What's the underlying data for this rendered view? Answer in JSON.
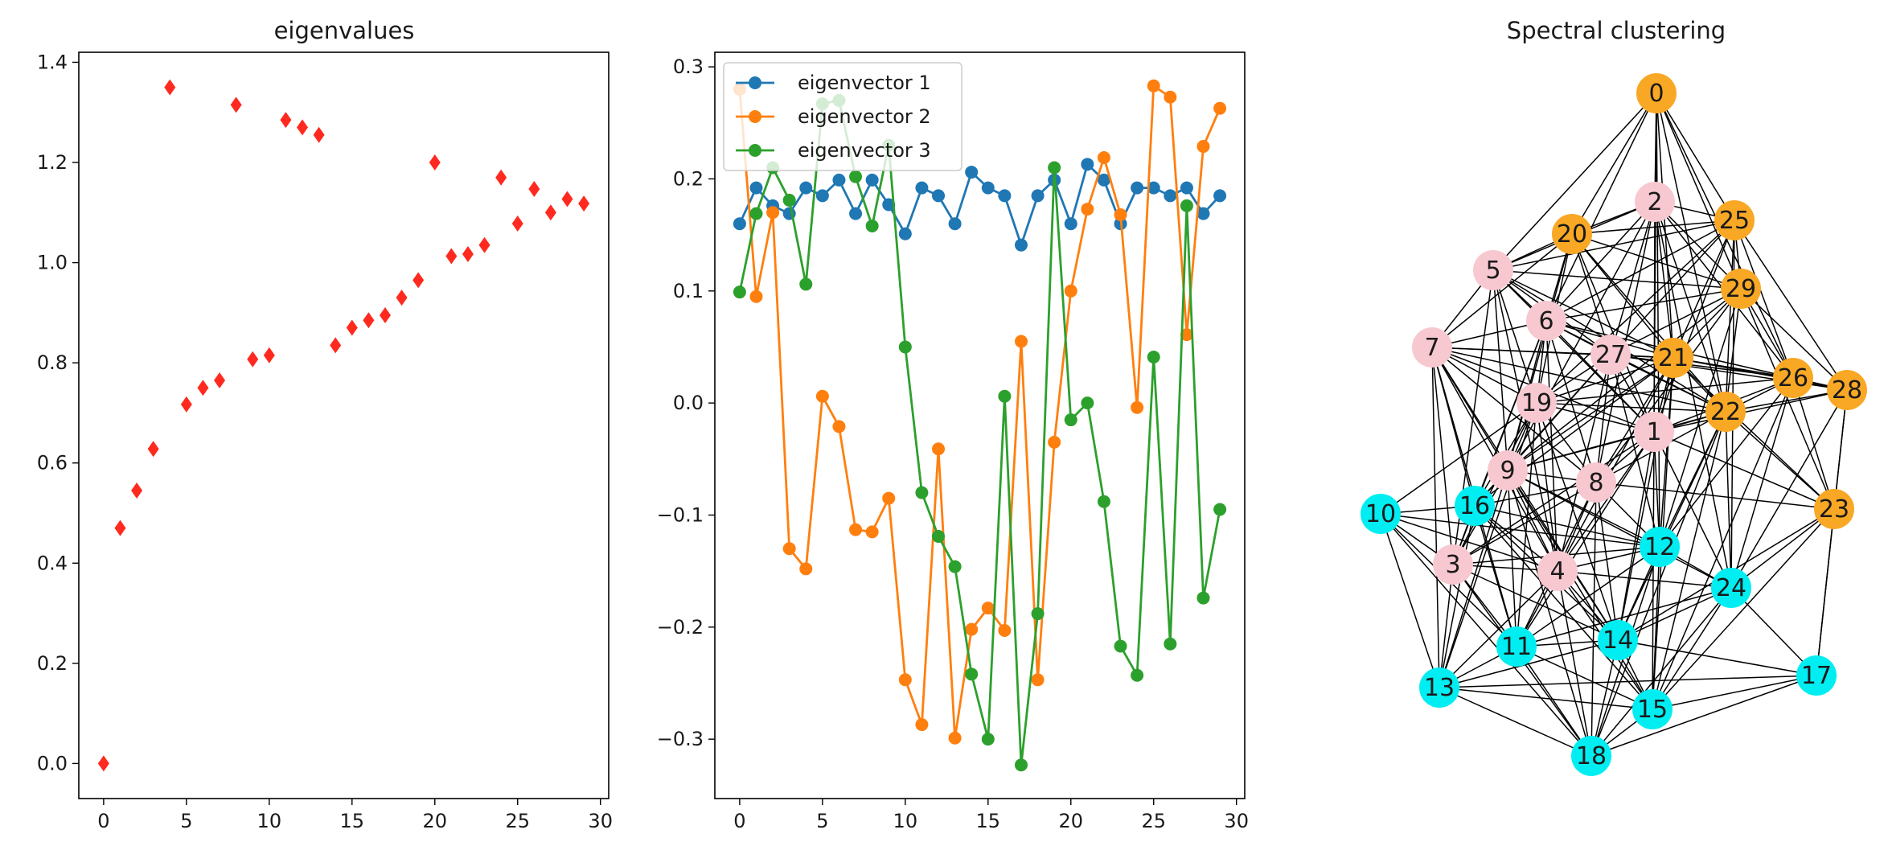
{
  "chart_data": [
    {
      "type": "scatter",
      "title": "eigenvalues",
      "xlabel": "",
      "ylabel": "",
      "marker": "diamond",
      "color": "#ff2a1f",
      "xlim": [
        -1.5,
        30.5
      ],
      "ylim": [
        -0.07,
        1.42
      ],
      "xticks": [
        0,
        5,
        10,
        15,
        20,
        25,
        30
      ],
      "yticks": [
        0.0,
        0.2,
        0.4,
        0.6,
        0.8,
        1.0,
        1.2,
        1.4
      ],
      "xtick_labels": [
        "0",
        "5",
        "10",
        "15",
        "20",
        "25",
        "30"
      ],
      "ytick_labels": [
        "0.0",
        "0.2",
        "0.4",
        "0.6",
        "0.8",
        "1.0",
        "1.2",
        "1.4"
      ],
      "x": [
        0,
        1,
        2,
        3,
        4,
        5,
        6,
        7,
        8,
        9,
        10,
        11,
        12,
        13,
        14,
        15,
        16,
        17,
        18,
        19,
        20,
        21,
        22,
        23,
        24,
        25,
        26,
        27,
        28,
        29
      ],
      "y": [
        0.0,
        0.47,
        0.545,
        0.628,
        1.35,
        0.717,
        0.75,
        0.765,
        1.315,
        0.807,
        0.815,
        1.285,
        1.27,
        1.255,
        0.835,
        0.87,
        0.885,
        0.895,
        0.93,
        0.965,
        1.2,
        1.013,
        1.017,
        1.035,
        1.17,
        1.078,
        1.147,
        1.1,
        1.127,
        1.118
      ]
    },
    {
      "type": "line",
      "title": "",
      "xlabel": "",
      "ylabel": "",
      "xlim": [
        -1.5,
        30.5
      ],
      "ylim": [
        -0.353,
        0.313
      ],
      "xticks": [
        0,
        5,
        10,
        15,
        20,
        25,
        30
      ],
      "yticks": [
        -0.3,
        -0.2,
        -0.1,
        0.0,
        0.1,
        0.2,
        0.3
      ],
      "xtick_labels": [
        "0",
        "5",
        "10",
        "15",
        "20",
        "25",
        "30"
      ],
      "ytick_labels": [
        "−0.3",
        "−0.2",
        "−0.1",
        "0.0",
        "0.1",
        "0.2",
        "0.3"
      ],
      "legend_position": "top-left",
      "x": [
        0,
        1,
        2,
        3,
        4,
        5,
        6,
        7,
        8,
        9,
        10,
        11,
        12,
        13,
        14,
        15,
        16,
        17,
        18,
        19,
        20,
        21,
        22,
        23,
        24,
        25,
        26,
        27,
        28,
        29
      ],
      "series": [
        {
          "name": "eigenvector 1",
          "color": "#1f77b4",
          "values": [
            0.16,
            0.192,
            0.176,
            0.169,
            0.192,
            0.185,
            0.199,
            0.169,
            0.199,
            0.177,
            0.151,
            0.192,
            0.185,
            0.16,
            0.206,
            0.192,
            0.185,
            0.141,
            0.185,
            0.199,
            0.16,
            0.213,
            0.199,
            0.16,
            0.192,
            0.192,
            0.185,
            0.192,
            0.169,
            0.185
          ]
        },
        {
          "name": "eigenvector 2",
          "color": "#ff7f0e",
          "values": [
            0.28,
            0.095,
            0.17,
            -0.13,
            -0.148,
            0.006,
            -0.021,
            -0.113,
            -0.115,
            -0.085,
            -0.247,
            -0.287,
            -0.041,
            -0.299,
            -0.202,
            -0.183,
            -0.203,
            0.055,
            -0.247,
            -0.035,
            0.1,
            0.173,
            0.219,
            0.168,
            -0.004,
            0.283,
            0.273,
            0.061,
            0.229,
            0.263
          ]
        },
        {
          "name": "eigenvector 3",
          "color": "#2ca02c",
          "values": [
            0.099,
            0.169,
            0.21,
            0.181,
            0.106,
            0.267,
            0.27,
            0.202,
            0.158,
            0.23,
            0.05,
            -0.08,
            -0.119,
            -0.146,
            -0.242,
            -0.3,
            0.006,
            -0.323,
            -0.188,
            0.21,
            -0.015,
            0.0,
            -0.088,
            -0.217,
            -0.243,
            0.041,
            -0.215,
            0.176,
            -0.174,
            -0.095
          ]
        }
      ]
    },
    {
      "type": "graph",
      "title": "Spectral clustering",
      "cluster_colors": {
        "A": "#f9a825",
        "B": "#f8c8d0",
        "C": "#00eef2"
      },
      "nodes": [
        {
          "id": "0",
          "cluster": "A"
        },
        {
          "id": "1",
          "cluster": "B"
        },
        {
          "id": "2",
          "cluster": "B"
        },
        {
          "id": "3",
          "cluster": "B"
        },
        {
          "id": "4",
          "cluster": "B"
        },
        {
          "id": "5",
          "cluster": "B"
        },
        {
          "id": "6",
          "cluster": "B"
        },
        {
          "id": "7",
          "cluster": "B"
        },
        {
          "id": "8",
          "cluster": "B"
        },
        {
          "id": "9",
          "cluster": "B"
        },
        {
          "id": "10",
          "cluster": "C"
        },
        {
          "id": "11",
          "cluster": "C"
        },
        {
          "id": "12",
          "cluster": "C"
        },
        {
          "id": "13",
          "cluster": "C"
        },
        {
          "id": "14",
          "cluster": "C"
        },
        {
          "id": "15",
          "cluster": "C"
        },
        {
          "id": "16",
          "cluster": "C"
        },
        {
          "id": "17",
          "cluster": "C"
        },
        {
          "id": "18",
          "cluster": "C"
        },
        {
          "id": "19",
          "cluster": "B"
        },
        {
          "id": "20",
          "cluster": "A"
        },
        {
          "id": "21",
          "cluster": "A"
        },
        {
          "id": "22",
          "cluster": "A"
        },
        {
          "id": "23",
          "cluster": "A"
        },
        {
          "id": "24",
          "cluster": "C"
        },
        {
          "id": "25",
          "cluster": "A"
        },
        {
          "id": "26",
          "cluster": "A"
        },
        {
          "id": "27",
          "cluster": "B"
        },
        {
          "id": "28",
          "cluster": "A"
        },
        {
          "id": "29",
          "cluster": "A"
        }
      ],
      "edges": [
        [
          "0",
          "2"
        ],
        [
          "0",
          "25"
        ],
        [
          "0",
          "29"
        ],
        [
          "0",
          "21"
        ],
        [
          "0",
          "22"
        ],
        [
          "0",
          "26"
        ],
        [
          "0",
          "5"
        ],
        [
          "0",
          "20"
        ],
        [
          "0",
          "1"
        ],
        [
          "0",
          "12"
        ],
        [
          "0",
          "6"
        ],
        [
          "2",
          "20"
        ],
        [
          "2",
          "25"
        ],
        [
          "2",
          "29"
        ],
        [
          "2",
          "6"
        ],
        [
          "2",
          "5"
        ],
        [
          "2",
          "21"
        ],
        [
          "2",
          "22"
        ],
        [
          "2",
          "26"
        ],
        [
          "2",
          "27"
        ],
        [
          "2",
          "9"
        ],
        [
          "2",
          "1"
        ],
        [
          "2",
          "8"
        ],
        [
          "2",
          "24"
        ],
        [
          "25",
          "20"
        ],
        [
          "25",
          "29"
        ],
        [
          "25",
          "21"
        ],
        [
          "25",
          "26"
        ],
        [
          "25",
          "28"
        ],
        [
          "25",
          "22"
        ],
        [
          "25",
          "6"
        ],
        [
          "25",
          "27"
        ],
        [
          "25",
          "5"
        ],
        [
          "25",
          "1"
        ],
        [
          "25",
          "24"
        ],
        [
          "25",
          "19"
        ],
        [
          "20",
          "5"
        ],
        [
          "20",
          "29"
        ],
        [
          "20",
          "6"
        ],
        [
          "20",
          "21"
        ],
        [
          "20",
          "27"
        ],
        [
          "20",
          "19"
        ],
        [
          "20",
          "9"
        ],
        [
          "20",
          "22"
        ],
        [
          "20",
          "1"
        ],
        [
          "20",
          "7"
        ],
        [
          "29",
          "5"
        ],
        [
          "29",
          "21"
        ],
        [
          "29",
          "26"
        ],
        [
          "29",
          "22"
        ],
        [
          "29",
          "28"
        ],
        [
          "29",
          "6"
        ],
        [
          "29",
          "27"
        ],
        [
          "29",
          "9"
        ],
        [
          "29",
          "8"
        ],
        [
          "29",
          "12"
        ],
        [
          "29",
          "23"
        ],
        [
          "5",
          "6"
        ],
        [
          "5",
          "7"
        ],
        [
          "5",
          "27"
        ],
        [
          "5",
          "21"
        ],
        [
          "5",
          "19"
        ],
        [
          "5",
          "9"
        ],
        [
          "5",
          "1"
        ],
        [
          "5",
          "3"
        ],
        [
          "5",
          "4"
        ],
        [
          "5",
          "22"
        ],
        [
          "6",
          "7"
        ],
        [
          "6",
          "27"
        ],
        [
          "6",
          "21"
        ],
        [
          "6",
          "19"
        ],
        [
          "6",
          "9"
        ],
        [
          "6",
          "1"
        ],
        [
          "6",
          "8"
        ],
        [
          "6",
          "22"
        ],
        [
          "6",
          "3"
        ],
        [
          "6",
          "4"
        ],
        [
          "6",
          "16"
        ],
        [
          "6",
          "26"
        ],
        [
          "7",
          "27"
        ],
        [
          "7",
          "21"
        ],
        [
          "7",
          "19"
        ],
        [
          "7",
          "9"
        ],
        [
          "7",
          "1"
        ],
        [
          "7",
          "3"
        ],
        [
          "7",
          "4"
        ],
        [
          "7",
          "13"
        ],
        [
          "7",
          "11"
        ],
        [
          "7",
          "16"
        ],
        [
          "7",
          "22"
        ],
        [
          "7",
          "8"
        ],
        [
          "7",
          "14"
        ],
        [
          "27",
          "21"
        ],
        [
          "27",
          "19"
        ],
        [
          "27",
          "22"
        ],
        [
          "27",
          "26"
        ],
        [
          "27",
          "1"
        ],
        [
          "27",
          "9"
        ],
        [
          "27",
          "8"
        ],
        [
          "27",
          "16"
        ],
        [
          "27",
          "4"
        ],
        [
          "27",
          "12"
        ],
        [
          "27",
          "28"
        ],
        [
          "21",
          "26"
        ],
        [
          "21",
          "22"
        ],
        [
          "21",
          "28"
        ],
        [
          "21",
          "19"
        ],
        [
          "21",
          "1"
        ],
        [
          "21",
          "9"
        ],
        [
          "21",
          "8"
        ],
        [
          "21",
          "4"
        ],
        [
          "21",
          "12"
        ],
        [
          "21",
          "14"
        ],
        [
          "21",
          "23"
        ],
        [
          "21",
          "16"
        ],
        [
          "21",
          "15"
        ],
        [
          "26",
          "22"
        ],
        [
          "26",
          "28"
        ],
        [
          "26",
          "23"
        ],
        [
          "26",
          "1"
        ],
        [
          "26",
          "24"
        ],
        [
          "26",
          "12"
        ],
        [
          "26",
          "15"
        ],
        [
          "26",
          "19"
        ],
        [
          "28",
          "22"
        ],
        [
          "28",
          "23"
        ],
        [
          "28",
          "1"
        ],
        [
          "28",
          "24"
        ],
        [
          "28",
          "17"
        ],
        [
          "22",
          "1"
        ],
        [
          "22",
          "19"
        ],
        [
          "22",
          "9"
        ],
        [
          "22",
          "8"
        ],
        [
          "22",
          "12"
        ],
        [
          "22",
          "23"
        ],
        [
          "22",
          "24"
        ],
        [
          "22",
          "14"
        ],
        [
          "22",
          "15"
        ],
        [
          "22",
          "18"
        ],
        [
          "19",
          "1"
        ],
        [
          "19",
          "9"
        ],
        [
          "19",
          "8"
        ],
        [
          "19",
          "16"
        ],
        [
          "19",
          "3"
        ],
        [
          "19",
          "4"
        ],
        [
          "19",
          "11"
        ],
        [
          "19",
          "14"
        ],
        [
          "19",
          "10"
        ],
        [
          "19",
          "13"
        ],
        [
          "1",
          "9"
        ],
        [
          "1",
          "8"
        ],
        [
          "1",
          "12"
        ],
        [
          "1",
          "4"
        ],
        [
          "1",
          "23"
        ],
        [
          "1",
          "24"
        ],
        [
          "1",
          "14"
        ],
        [
          "1",
          "11"
        ],
        [
          "1",
          "15"
        ],
        [
          "1",
          "3"
        ],
        [
          "9",
          "8"
        ],
        [
          "9",
          "16"
        ],
        [
          "9",
          "3"
        ],
        [
          "9",
          "4"
        ],
        [
          "9",
          "11"
        ],
        [
          "9",
          "12"
        ],
        [
          "9",
          "14"
        ],
        [
          "9",
          "15"
        ],
        [
          "9",
          "18"
        ],
        [
          "9",
          "13"
        ],
        [
          "9",
          "24"
        ],
        [
          "8",
          "16"
        ],
        [
          "8",
          "12"
        ],
        [
          "8",
          "3"
        ],
        [
          "8",
          "4"
        ],
        [
          "8",
          "11"
        ],
        [
          "8",
          "14"
        ],
        [
          "8",
          "23"
        ],
        [
          "8",
          "18"
        ],
        [
          "10",
          "16"
        ],
        [
          "10",
          "3"
        ],
        [
          "10",
          "13"
        ],
        [
          "10",
          "11"
        ],
        [
          "10",
          "18"
        ],
        [
          "10",
          "12"
        ],
        [
          "10",
          "4"
        ],
        [
          "16",
          "3"
        ],
        [
          "16",
          "4"
        ],
        [
          "16",
          "12"
        ],
        [
          "16",
          "11"
        ],
        [
          "16",
          "14"
        ],
        [
          "16",
          "13"
        ],
        [
          "16",
          "15"
        ],
        [
          "3",
          "4"
        ],
        [
          "3",
          "11"
        ],
        [
          "3",
          "13"
        ],
        [
          "3",
          "14"
        ],
        [
          "3",
          "18"
        ],
        [
          "3",
          "12"
        ],
        [
          "4",
          "12"
        ],
        [
          "4",
          "11"
        ],
        [
          "4",
          "14"
        ],
        [
          "4",
          "15"
        ],
        [
          "4",
          "18"
        ],
        [
          "4",
          "13"
        ],
        [
          "4",
          "24"
        ],
        [
          "12",
          "24"
        ],
        [
          "12",
          "14"
        ],
        [
          "12",
          "15"
        ],
        [
          "12",
          "11"
        ],
        [
          "12",
          "18"
        ],
        [
          "23",
          "24"
        ],
        [
          "23",
          "15"
        ],
        [
          "23",
          "17"
        ],
        [
          "23",
          "14"
        ],
        [
          "24",
          "14"
        ],
        [
          "24",
          "15"
        ],
        [
          "24",
          "11"
        ],
        [
          "24",
          "17"
        ],
        [
          "24",
          "18"
        ],
        [
          "11",
          "14"
        ],
        [
          "11",
          "13"
        ],
        [
          "11",
          "15"
        ],
        [
          "11",
          "18"
        ],
        [
          "14",
          "15"
        ],
        [
          "14",
          "13"
        ],
        [
          "14",
          "18"
        ],
        [
          "14",
          "17"
        ],
        [
          "13",
          "15"
        ],
        [
          "13",
          "18"
        ],
        [
          "13",
          "17"
        ],
        [
          "15",
          "18"
        ],
        [
          "15",
          "17"
        ],
        [
          "18",
          "17"
        ]
      ]
    }
  ]
}
